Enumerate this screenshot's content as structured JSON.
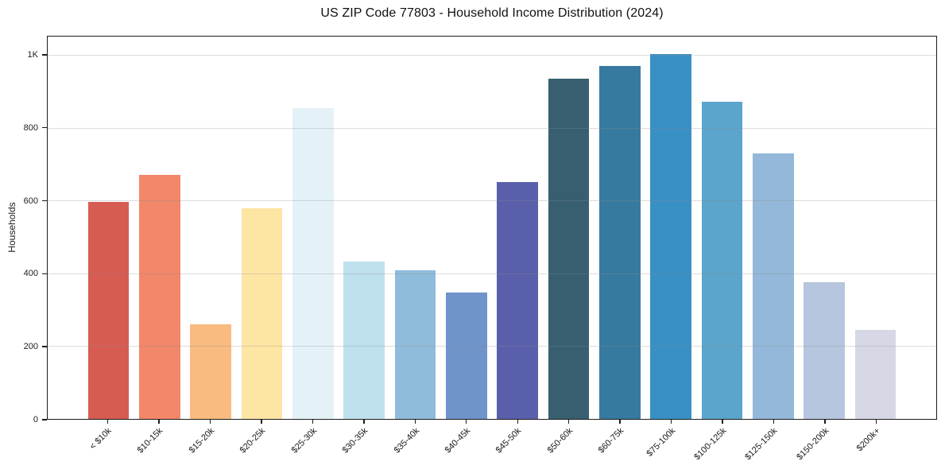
{
  "chart_data": {
    "type": "bar",
    "title": "US ZIP Code 77803 - Household Income Distribution (2024)",
    "xlabel": "",
    "ylabel": "Households",
    "categories": [
      "< $10k",
      "$10-15k",
      "$15-20k",
      "$20-25k",
      "$25-30k",
      "$30-35k",
      "$35-40k",
      "$40-45k",
      "$45-50k",
      "$50-60k",
      "$60-75k",
      "$75-100k",
      "$100-125k",
      "$125-150k",
      "$150-200k",
      "$200k+"
    ],
    "values": [
      598,
      672,
      260,
      580,
      856,
      432,
      410,
      347,
      652,
      937,
      971,
      1003,
      873,
      730,
      376,
      245
    ],
    "bar_colors": [
      "#d65c52",
      "#f2876a",
      "#f9bb80",
      "#fde5a4",
      "#e4f2f8",
      "#bfe0ee",
      "#90bcdb",
      "#6e94ca",
      "#5a5fab",
      "#375f70",
      "#377aa0",
      "#3990c4",
      "#5ba4cb",
      "#93b8d9",
      "#b5c6de",
      "#d7d8e5"
    ],
    "yticks": {
      "values": [
        0,
        200,
        400,
        600,
        800,
        1000
      ],
      "labels": [
        "0",
        "200",
        "400",
        "600",
        "800",
        "1K"
      ]
    },
    "ylim": [
      0,
      1052
    ],
    "grid": "horizontal, drawn above bars",
    "legend": "none",
    "x_tick_rotation_deg": 45,
    "colors": {
      "background": "#ffffff",
      "spine": "#1c1c1c",
      "grid_rgba": "rgba(140,140,140,0.3)",
      "tick_label": "#202020",
      "title": "#111111"
    }
  }
}
